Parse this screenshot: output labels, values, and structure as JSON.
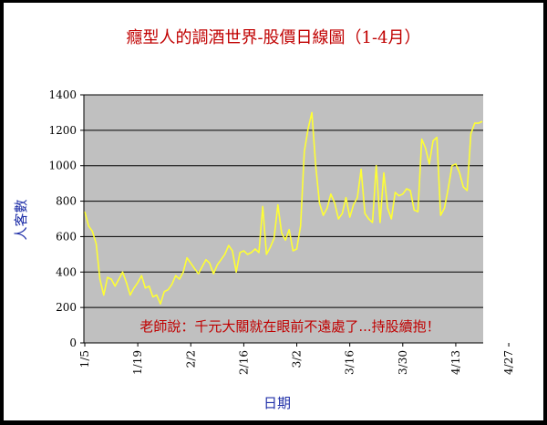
{
  "chart_data": {
    "type": "line",
    "title": "癮型人的調酒世界-股價日線圖（1-4月）",
    "xlabel": "日期",
    "ylabel": "人客數",
    "ylim": [
      0,
      1400
    ],
    "yticks": [
      "0",
      "200",
      "400",
      "600",
      "800",
      "1000",
      "1200",
      "1400"
    ],
    "xtick_labels": [
      "1/5",
      "1/19",
      "2/2",
      "2/16",
      "3/2",
      "3/16",
      "3/30",
      "4/13",
      "4/27"
    ],
    "xtick_index": [
      0,
      14,
      28,
      42,
      56,
      70,
      84,
      98,
      112
    ],
    "grid": true,
    "annotation": "老師說：千元大關就在眼前不遠處了...持股續抱！",
    "colors": {
      "line": "#ffff33",
      "plot_bg": "#c0c0c0",
      "title": "#c00000",
      "axis_label": "#1f2fa8"
    },
    "series": [
      {
        "values": [
          740,
          660,
          630,
          560,
          360,
          270,
          370,
          360,
          320,
          360,
          400,
          340,
          270,
          310,
          340,
          380,
          310,
          320,
          260,
          270,
          220,
          290,
          300,
          330,
          380,
          360,
          400,
          480,
          450,
          420,
          390,
          430,
          470,
          450,
          390,
          440,
          470,
          500,
          550,
          520,
          400,
          510,
          520,
          500,
          510,
          530,
          510,
          770,
          500,
          540,
          590,
          780,
          620,
          580,
          640,
          520,
          530,
          660,
          1080,
          1210,
          1300,
          1000,
          790,
          720,
          760,
          840,
          790,
          700,
          730,
          820,
          710,
          780,
          820,
          980,
          730,
          700,
          680,
          1000,
          680,
          960,
          760,
          700,
          850,
          830,
          840,
          870,
          860,
          750,
          740,
          1150,
          1100,
          1010,
          1140,
          1160,
          720,
          760,
          870,
          1000,
          1010,
          960,
          880,
          860,
          1180,
          1240,
          1240,
          1250
        ]
      }
    ]
  }
}
